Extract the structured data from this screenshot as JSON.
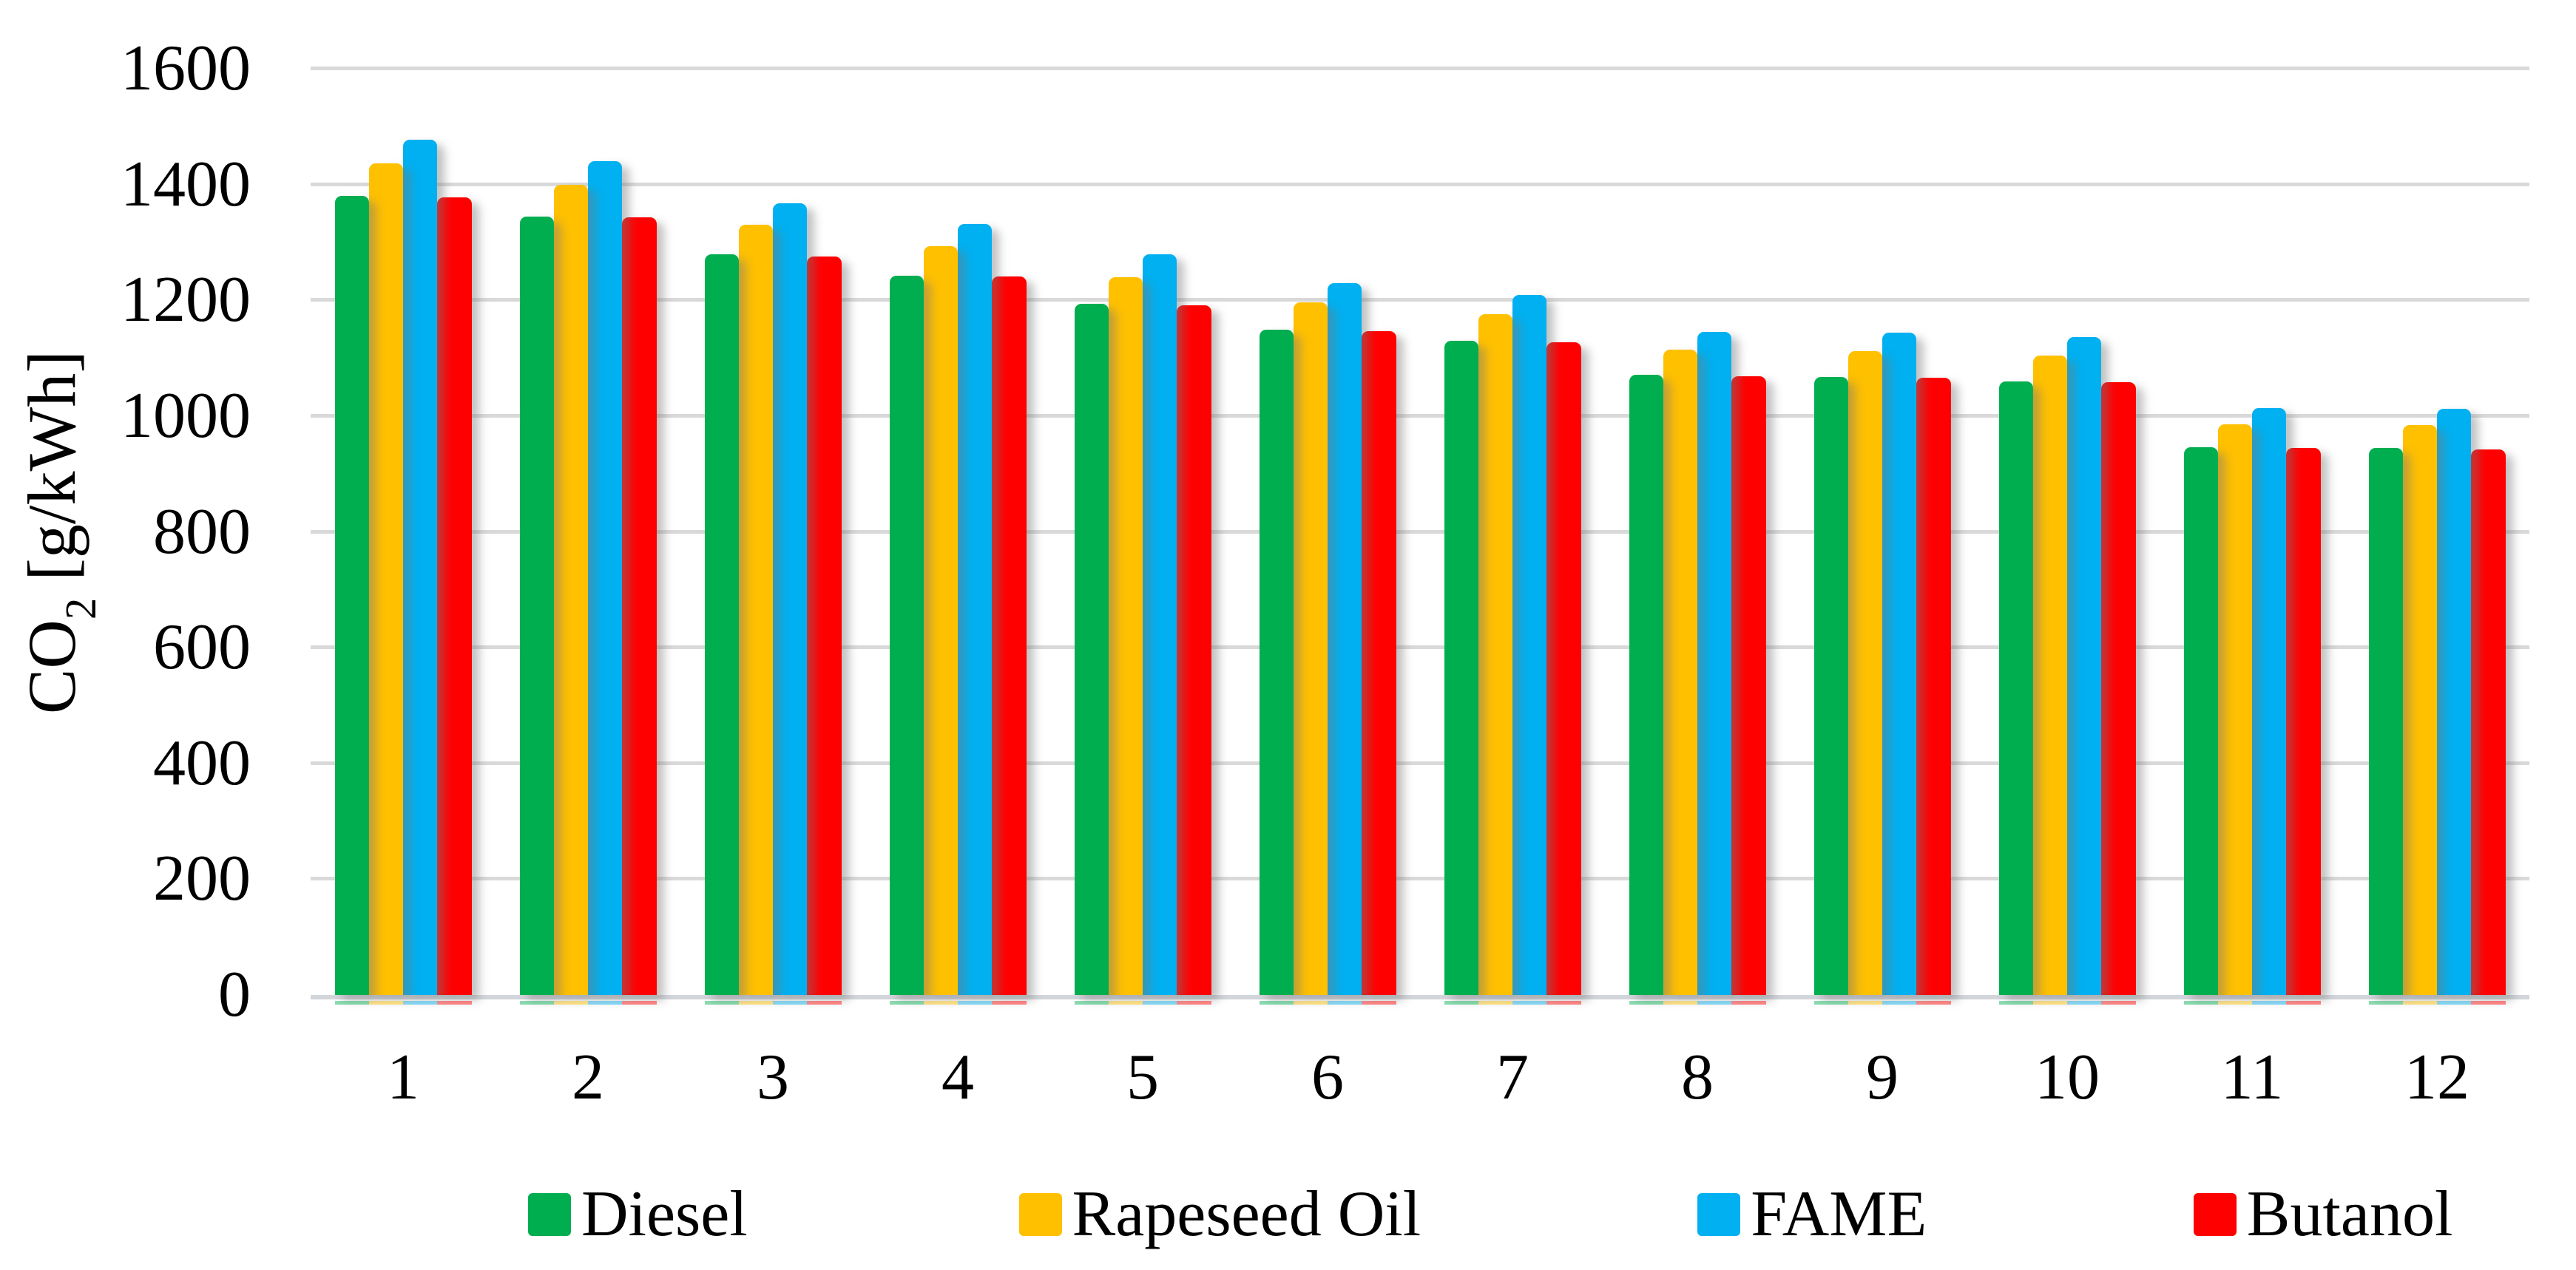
{
  "chart_data": {
    "type": "bar",
    "title": "",
    "xlabel": "",
    "ylabel": "CO2 [g/kWh]",
    "ylabel_parts": {
      "base": "CO",
      "subscript": "2",
      "unit": " [g/kWh]"
    },
    "categories": [
      "1",
      "2",
      "3",
      "4",
      "5",
      "6",
      "7",
      "8",
      "9",
      "10",
      "11",
      "12"
    ],
    "y_ticks": [
      0,
      200,
      400,
      600,
      800,
      1000,
      1200,
      1400,
      1600
    ],
    "ylim": [
      0,
      1600
    ],
    "grid": true,
    "legend_position": "bottom",
    "series": [
      {
        "name": "Diesel",
        "color": "#00AE50",
        "values": [
          1380,
          1345,
          1279,
          1243,
          1194,
          1149,
          1130,
          1071,
          1068,
          1060,
          946,
          945
        ]
      },
      {
        "name": "Rapeseed Oil",
        "color": "#FFC000",
        "values": [
          1437,
          1400,
          1330,
          1294,
          1240,
          1196,
          1176,
          1115,
          1112,
          1104,
          986,
          985
        ]
      },
      {
        "name": "FAME",
        "color": "#00B0F0",
        "values": [
          1477,
          1441,
          1368,
          1332,
          1279,
          1230,
          1209,
          1146,
          1144,
          1137,
          1014,
          1013
        ]
      },
      {
        "name": "Butanol",
        "color": "#FF0000",
        "values": [
          1378,
          1343,
          1276,
          1241,
          1192,
          1147,
          1127,
          1069,
          1066,
          1058,
          945,
          943
        ]
      }
    ]
  },
  "colors": {
    "gridline": "#D9D9D9",
    "axis_line": "#D2D6DB",
    "background": "#FFFFFF",
    "text": "#000000"
  }
}
